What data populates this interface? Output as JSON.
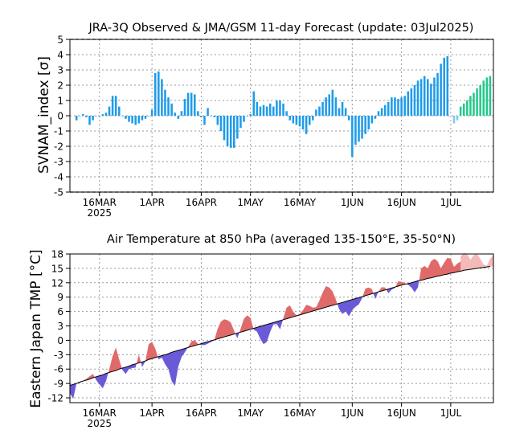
{
  "charts": {
    "svnam": {
      "title": "JRA-3Q Observed & JMA/GSM 11-day Forecast (update: 03Jul2025)",
      "ylabel": "SVNAM_index [σ]"
    },
    "tmp": {
      "title": "Air Temperature at 850 hPa (averaged 135-150°E, 35-50°N)",
      "ylabel": "Eastern Japan TMP [°C]"
    }
  },
  "chart_data": [
    {
      "type": "bar",
      "title": "JRA-3Q Observed & JMA/GSM 11-day Forecast (update: 03Jul2025)",
      "ylabel": "SVNAM_index [σ]",
      "xlabel": "",
      "ylim": [
        -5,
        5
      ],
      "yticks": [
        -5,
        -4,
        -3,
        -2,
        -1,
        0,
        1,
        2,
        3,
        4,
        5
      ],
      "x_start": "2025-03-07",
      "x_end": "2025-07-14",
      "xtick_labels": [
        {
          "date": "2025-03-16",
          "label": "16MAR",
          "sub": "2025"
        },
        {
          "date": "2025-04-01",
          "label": "1APR"
        },
        {
          "date": "2025-04-16",
          "label": "16APR"
        },
        {
          "date": "2025-05-01",
          "label": "1MAY"
        },
        {
          "date": "2025-05-16",
          "label": "16MAY"
        },
        {
          "date": "2025-06-01",
          "label": "1JUN"
        },
        {
          "date": "2025-06-16",
          "label": "16JUN"
        },
        {
          "date": "2025-07-01",
          "label": "1JUL"
        }
      ],
      "grid": true,
      "colors": {
        "observed": "#1e9bea",
        "transition": "#7ec8f2",
        "forecast": "#22c98a"
      },
      "series": [
        {
          "role": "observed",
          "start": "2025-03-09",
          "values": [
            -0.3,
            0.0,
            0.1,
            -0.1,
            -0.6,
            -0.3,
            0.0,
            0.0,
            0.1,
            0.2,
            0.6,
            1.3,
            1.3,
            0.6,
            0.0,
            -0.2,
            -0.4,
            -0.5,
            -0.6,
            -0.5,
            -0.3,
            -0.2,
            0.0,
            0.4,
            2.8,
            2.9,
            2.4,
            1.7,
            1.2,
            0.8,
            0.2,
            -0.2,
            0.3,
            1.1,
            1.5,
            1.5,
            1.4,
            0.3,
            -0.1,
            -0.6,
            0.5,
            0.0,
            -0.1,
            -0.6,
            -1.0,
            -1.6,
            -2.0,
            -2.1,
            -2.1,
            -1.5,
            -0.8,
            -0.4,
            0.0,
            0.1,
            1.6,
            0.9,
            0.6,
            0.7,
            0.6,
            0.8,
            0.6,
            1.0,
            1.0,
            0.8,
            0.3,
            -0.3,
            -0.5,
            -0.6,
            -0.7,
            -0.9,
            -1.2,
            -0.6,
            -0.3,
            0.4,
            0.6,
            0.9,
            1.2,
            1.4,
            1.7,
            1.2,
            0.5,
            0.9,
            0.5,
            -0.3,
            -2.7,
            -1.9,
            -1.7,
            -1.5,
            -1.2,
            -0.9,
            -0.5,
            -0.2,
            0.3,
            0.5,
            0.7,
            0.9,
            1.2,
            1.2,
            1.1,
            1.2,
            1.3,
            1.6,
            1.8,
            2.0,
            2.3,
            2.4,
            2.6,
            2.4,
            2.1,
            2.5,
            2.8,
            3.4,
            3.8,
            3.9
          ]
        },
        {
          "role": "transition",
          "start": "2025-07-02",
          "values": [
            -0.5,
            -0.3
          ]
        },
        {
          "role": "forecast",
          "start": "2025-07-04",
          "values": [
            0.6,
            0.8,
            1.0,
            1.3,
            1.5,
            1.8,
            2.0,
            2.3,
            2.5,
            2.6
          ]
        }
      ]
    },
    {
      "type": "area",
      "title": "Air Temperature at 850 hPa (averaged 135-150°E, 35-50°N)",
      "ylabel": "Eastern Japan TMP [°C]",
      "xlabel": "",
      "ylim": [
        -13,
        18
      ],
      "yticks": [
        -12,
        -9,
        -6,
        -3,
        0,
        3,
        6,
        9,
        12,
        15,
        18
      ],
      "x_start": "2025-03-07",
      "x_end": "2025-07-14",
      "xtick_labels": [
        {
          "date": "2025-03-16",
          "label": "16MAR",
          "sub": "2025"
        },
        {
          "date": "2025-04-01",
          "label": "1APR"
        },
        {
          "date": "2025-04-16",
          "label": "16APR"
        },
        {
          "date": "2025-05-01",
          "label": "1MAY"
        },
        {
          "date": "2025-05-16",
          "label": "16MAY"
        },
        {
          "date": "2025-06-01",
          "label": "1JUN"
        },
        {
          "date": "2025-06-16",
          "label": "16JUN"
        },
        {
          "date": "2025-07-01",
          "label": "1JUL"
        }
      ],
      "grid": true,
      "colors": {
        "warm": "#e06a6a",
        "cold": "#6a5ad8",
        "warm_forecast": "#f4b9b9",
        "climatology_line": "#000000"
      },
      "climatology": {
        "start": "2025-03-07",
        "values": [
          -9.4,
          -9.2,
          -9.0,
          -8.7,
          -8.5,
          -8.3,
          -8.1,
          -7.8,
          -7.6,
          -7.4,
          -7.2,
          -6.9,
          -6.7,
          -6.5,
          -6.3,
          -6.0,
          -5.8,
          -5.6,
          -5.4,
          -5.1,
          -4.9,
          -4.7,
          -4.5,
          -4.3,
          -4.0,
          -3.8,
          -3.6,
          -3.4,
          -3.2,
          -3.0,
          -2.8,
          -2.5,
          -2.3,
          -2.1,
          -1.9,
          -1.7,
          -1.5,
          -1.3,
          -1.1,
          -0.9,
          -0.7,
          -0.5,
          -0.3,
          -0.1,
          0.1,
          0.3,
          0.5,
          0.7,
          0.9,
          1.1,
          1.3,
          1.5,
          1.7,
          1.9,
          2.1,
          2.3,
          2.5,
          2.7,
          2.9,
          3.1,
          3.3,
          3.5,
          3.7,
          3.9,
          4.1,
          4.3,
          4.5,
          4.7,
          4.9,
          5.1,
          5.3,
          5.5,
          5.7,
          5.9,
          6.1,
          6.3,
          6.5,
          6.7,
          6.9,
          7.1,
          7.3,
          7.5,
          7.7,
          7.9,
          8.1,
          8.3,
          8.5,
          8.7,
          8.9,
          9.1,
          9.3,
          9.5,
          9.7,
          9.9,
          10.1,
          10.3,
          10.5,
          10.7,
          10.9,
          11.1,
          11.3,
          11.5,
          11.7,
          11.8,
          12.0,
          12.2,
          12.4,
          12.5,
          12.7,
          12.9,
          13.0,
          13.2,
          13.4,
          13.5,
          13.7,
          13.8,
          14.0,
          14.1,
          14.3,
          14.4,
          14.6,
          14.7,
          14.8,
          14.9,
          15.0,
          15.1,
          15.2,
          15.3,
          15.4
        ]
      },
      "observed": {
        "start": "2025-03-07",
        "values": [
          -11.0,
          -12.2,
          -9.0,
          -8.9,
          -8.5,
          -8.0,
          -7.5,
          -7.0,
          -8.3,
          -9.2,
          -10.0,
          -8.5,
          -6.0,
          -3.3,
          -1.5,
          -4.0,
          -6.2,
          -7.0,
          -6.0,
          -5.8,
          -5.7,
          -3.0,
          -5.6,
          -4.3,
          -0.8,
          -0.3,
          -1.7,
          -4.0,
          -3.6,
          -5.0,
          -6.0,
          -8.5,
          -9.5,
          -5.5,
          -3.5,
          -2.5,
          -1.4,
          -0.2,
          0.0,
          -0.7,
          -1.0,
          -1.0,
          -0.7,
          -0.3,
          0.0,
          2.4,
          3.9,
          4.4,
          4.2,
          3.7,
          2.0,
          0.4,
          2.4,
          4.5,
          5.2,
          4.7,
          2.2,
          1.8,
          0.3,
          -0.8,
          -0.3,
          1.8,
          3.3,
          3.4,
          2.3,
          4.6,
          6.8,
          7.3,
          6.0,
          5.2,
          5.5,
          6.3,
          7.4,
          7.2,
          6.8,
          6.9,
          8.3,
          10.0,
          11.3,
          11.0,
          10.2,
          8.5,
          6.5,
          5.5,
          6.0,
          5.0,
          6.3,
          7.0,
          7.5,
          8.8,
          10.8,
          11.0,
          10.7,
          8.6,
          10.2,
          11.1,
          11.0,
          9.8,
          10.6,
          10.9,
          12.3,
          12.2,
          11.9,
          11.6,
          11.0,
          10.0,
          11.0,
          15.0,
          15.5,
          15.0,
          16.5,
          17.0,
          16.5,
          15.0,
          16.2,
          17.2,
          17.0,
          15.3,
          16.0,
          16.4,
          15.5,
          17.0
        ]
      },
      "forecast": {
        "start": "2025-07-04",
        "values": [
          17.5,
          18.2,
          18.0,
          16.8,
          17.8,
          18.0,
          17.0,
          15.8,
          15.5,
          17.0,
          17.8
        ]
      }
    }
  ]
}
